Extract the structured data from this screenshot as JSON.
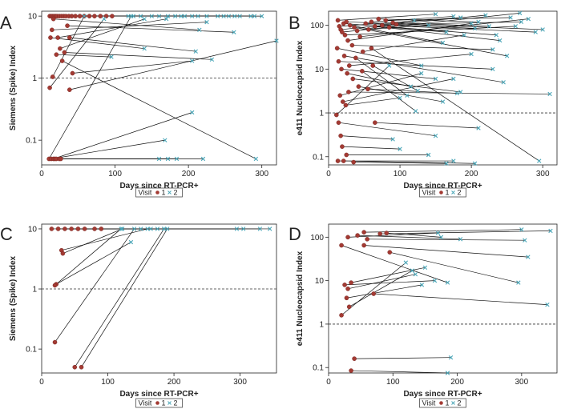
{
  "figure": {
    "legend": {
      "title": "Visit",
      "items": [
        "1",
        "2"
      ]
    },
    "colors": {
      "visit1": "#a33a33",
      "visit2": "#4aa6b8",
      "line": "#111111",
      "reference": "#333333"
    }
  },
  "chart_data": [
    {
      "panel": "A",
      "type": "scatter",
      "xlabel": "Days since RT-PCR+",
      "ylabel": "Siemens (Spike) Index",
      "xlim": [
        0,
        320
      ],
      "ylim": [
        0.04,
        12
      ],
      "yscale": "log",
      "xticks": [
        0,
        100,
        200,
        300
      ],
      "yticks": [
        {
          "v": 0.1,
          "label": "0.1"
        },
        {
          "v": 1,
          "label": "1"
        },
        {
          "v": 10,
          "label": "10"
        }
      ],
      "reference_y": 1,
      "grid": false,
      "pairs": [
        {
          "x1": 11,
          "y1": 10,
          "x2": 150,
          "y2": 10
        },
        {
          "x1": 13,
          "y1": 10,
          "x2": 195,
          "y2": 10
        },
        {
          "x1": 15,
          "y1": 10,
          "x2": 240,
          "y2": 10
        },
        {
          "x1": 17,
          "y1": 10,
          "x2": 263,
          "y2": 10
        },
        {
          "x1": 19,
          "y1": 10,
          "x2": 290,
          "y2": 10
        },
        {
          "x1": 21,
          "y1": 10,
          "x2": 300,
          "y2": 10
        },
        {
          "x1": 24,
          "y1": 10,
          "x2": 118,
          "y2": 10
        },
        {
          "x1": 27,
          "y1": 10,
          "x2": 172,
          "y2": 10
        },
        {
          "x1": 30,
          "y1": 10,
          "x2": 213,
          "y2": 10
        },
        {
          "x1": 33,
          "y1": 10,
          "x2": 255,
          "y2": 10
        },
        {
          "x1": 37,
          "y1": 10,
          "x2": 135,
          "y2": 10
        },
        {
          "x1": 41,
          "y1": 10,
          "x2": 182,
          "y2": 10
        },
        {
          "x1": 46,
          "y1": 10,
          "x2": 225,
          "y2": 10
        },
        {
          "x1": 52,
          "y1": 10,
          "x2": 270,
          "y2": 10
        },
        {
          "x1": 58,
          "y1": 10,
          "x2": 160,
          "y2": 10
        },
        {
          "x1": 65,
          "y1": 10,
          "x2": 205,
          "y2": 10
        },
        {
          "x1": 72,
          "y1": 10,
          "x2": 248,
          "y2": 10
        },
        {
          "x1": 80,
          "y1": 10,
          "x2": 125,
          "y2": 10
        },
        {
          "x1": 88,
          "y1": 10,
          "x2": 190,
          "y2": 10
        },
        {
          "x1": 96,
          "y1": 10,
          "x2": 285,
          "y2": 10
        },
        {
          "x1": 16,
          "y1": 9,
          "x2": 215,
          "y2": 6
        },
        {
          "x1": 35,
          "y1": 7,
          "x2": 262,
          "y2": 5.5
        },
        {
          "x1": 14,
          "y1": 6,
          "x2": 225,
          "y2": 8
        },
        {
          "x1": 22,
          "y1": 4.5,
          "x2": 170,
          "y2": 9
        },
        {
          "x1": 12,
          "y1": 4.5,
          "x2": 140,
          "y2": 3
        },
        {
          "x1": 25,
          "y1": 3,
          "x2": 140,
          "y2": 9
        },
        {
          "x1": 38,
          "y1": 4.5,
          "x2": 210,
          "y2": 2.7
        },
        {
          "x1": 31,
          "y1": 2.6,
          "x2": 232,
          "y2": 2
        },
        {
          "x1": 20,
          "y1": 2.4,
          "x2": 95,
          "y2": 2.2
        },
        {
          "x1": 15,
          "y1": 1.05,
          "x2": 58,
          "y2": 10
        },
        {
          "x1": 42,
          "y1": 1.2,
          "x2": 205,
          "y2": 1.9
        },
        {
          "x1": 11,
          "y1": 0.7,
          "x2": 85,
          "y2": 9
        },
        {
          "x1": 28,
          "y1": 1.9,
          "x2": 292,
          "y2": 0.05
        },
        {
          "x1": 38,
          "y1": 0.65,
          "x2": 320,
          "y2": 4
        },
        {
          "x1": 10,
          "y1": 0.05,
          "x2": 122,
          "y2": 10
        },
        {
          "x1": 13,
          "y1": 0.05,
          "x2": 168,
          "y2": 0.1
        },
        {
          "x1": 16,
          "y1": 0.05,
          "x2": 205,
          "y2": 0.28
        },
        {
          "x1": 18,
          "y1": 0.05,
          "x2": 220,
          "y2": 0.05
        },
        {
          "x1": 20,
          "y1": 0.05,
          "x2": 172,
          "y2": 0.05
        },
        {
          "x1": 24,
          "y1": 0.05,
          "x2": 160,
          "y2": 0.05
        },
        {
          "x1": 26,
          "y1": 0.05,
          "x2": 184,
          "y2": 0.05
        }
      ]
    },
    {
      "panel": "B",
      "type": "scatter",
      "xlabel": "Days since RT-PCR+",
      "ylabel": "e411 Nucleocapsid Index",
      "xlim": [
        0,
        320
      ],
      "ylim": [
        0.065,
        210
      ],
      "yscale": "log",
      "xticks": [
        0,
        100,
        200,
        300
      ],
      "yticks": [
        {
          "v": 0.1,
          "label": "0.1"
        },
        {
          "v": 1,
          "label": "1"
        },
        {
          "v": 10,
          "label": "10"
        },
        {
          "v": 100,
          "label": "100"
        }
      ],
      "reference_y": 1,
      "grid": false,
      "pairs": [
        {
          "x1": 13,
          "y1": 130,
          "x2": 150,
          "y2": 180
        },
        {
          "x1": 15,
          "y1": 95,
          "x2": 185,
          "y2": 150
        },
        {
          "x1": 17,
          "y1": 80,
          "x2": 220,
          "y2": 170
        },
        {
          "x1": 19,
          "y1": 70,
          "x2": 268,
          "y2": 190
        },
        {
          "x1": 21,
          "y1": 110,
          "x2": 235,
          "y2": 60
        },
        {
          "x1": 23,
          "y1": 60,
          "x2": 262,
          "y2": 95
        },
        {
          "x1": 25,
          "y1": 120,
          "x2": 300,
          "y2": 80
        },
        {
          "x1": 27,
          "y1": 45,
          "x2": 200,
          "y2": 110
        },
        {
          "x1": 30,
          "y1": 100,
          "x2": 160,
          "y2": 40
        },
        {
          "x1": 33,
          "y1": 35,
          "x2": 230,
          "y2": 28
        },
        {
          "x1": 36,
          "y1": 90,
          "x2": 250,
          "y2": 20
        },
        {
          "x1": 40,
          "y1": 75,
          "x2": 120,
          "y2": 130
        },
        {
          "x1": 44,
          "y1": 55,
          "x2": 280,
          "y2": 140
        },
        {
          "x1": 48,
          "y1": 25,
          "x2": 190,
          "y2": 60
        },
        {
          "x1": 52,
          "y1": 110,
          "x2": 205,
          "y2": 85
        },
        {
          "x1": 56,
          "y1": 80,
          "x2": 140,
          "y2": 100
        },
        {
          "x1": 60,
          "y1": 120,
          "x2": 175,
          "y2": 160
        },
        {
          "x1": 65,
          "y1": 95,
          "x2": 240,
          "y2": 45
        },
        {
          "x1": 70,
          "y1": 140,
          "x2": 210,
          "y2": 120
        },
        {
          "x1": 75,
          "y1": 100,
          "x2": 290,
          "y2": 70
        },
        {
          "x1": 80,
          "y1": 130,
          "x2": 255,
          "y2": 150
        },
        {
          "x1": 85,
          "y1": 90,
          "x2": 165,
          "y2": 70
        },
        {
          "x1": 90,
          "y1": 115,
          "x2": 225,
          "y2": 95
        },
        {
          "x1": 95,
          "y1": 105,
          "x2": 270,
          "y2": 120
        },
        {
          "x1": 12,
          "y1": 30,
          "x2": 130,
          "y2": 12
        },
        {
          "x1": 14,
          "y1": 15,
          "x2": 230,
          "y2": 10
        },
        {
          "x1": 18,
          "y1": 10,
          "x2": 150,
          "y2": 6
        },
        {
          "x1": 22,
          "y1": 20,
          "x2": 245,
          "y2": 5
        },
        {
          "x1": 26,
          "y1": 8,
          "x2": 115,
          "y2": 4
        },
        {
          "x1": 29,
          "y1": 12,
          "x2": 200,
          "y2": 22
        },
        {
          "x1": 34,
          "y1": 6,
          "x2": 185,
          "y2": 3
        },
        {
          "x1": 38,
          "y1": 18,
          "x2": 110,
          "y2": 2.5
        },
        {
          "x1": 42,
          "y1": 4,
          "x2": 160,
          "y2": 1.8
        },
        {
          "x1": 47,
          "y1": 9,
          "x2": 122,
          "y2": 1.1
        },
        {
          "x1": 55,
          "y1": 3.5,
          "x2": 180,
          "y2": 2.8
        },
        {
          "x1": 62,
          "y1": 12,
          "x2": 125,
          "y2": 3.2
        },
        {
          "x1": 16,
          "y1": 2.5,
          "x2": 130,
          "y2": 8
        },
        {
          "x1": 20,
          "y1": 1.8,
          "x2": 175,
          "y2": 6
        },
        {
          "x1": 24,
          "y1": 1.5,
          "x2": 100,
          "y2": 2.2
        },
        {
          "x1": 11,
          "y1": 0.9,
          "x2": 85,
          "y2": 12
        },
        {
          "x1": 28,
          "y1": 3,
          "x2": 310,
          "y2": 2.7
        },
        {
          "x1": 60,
          "y1": 30,
          "x2": 295,
          "y2": 0.08
        },
        {
          "x1": 14,
          "y1": 0.6,
          "x2": 150,
          "y2": 0.3
        },
        {
          "x1": 65,
          "y1": 0.6,
          "x2": 210,
          "y2": 0.45
        },
        {
          "x1": 17,
          "y1": 0.3,
          "x2": 90,
          "y2": 0.25
        },
        {
          "x1": 19,
          "y1": 0.17,
          "x2": 100,
          "y2": 0.15
        },
        {
          "x1": 25,
          "y1": 0.11,
          "x2": 140,
          "y2": 0.11
        },
        {
          "x1": 13,
          "y1": 0.08,
          "x2": 175,
          "y2": 0.08
        },
        {
          "x1": 21,
          "y1": 0.08,
          "x2": 205,
          "y2": 0.07
        },
        {
          "x1": 35,
          "y1": 0.075,
          "x2": 165,
          "y2": 0.07
        }
      ]
    },
    {
      "panel": "C",
      "type": "scatter",
      "xlabel": "Days since RT-PCR+",
      "ylabel": "Siemens (Spike) Index",
      "xlim": [
        0,
        355
      ],
      "ylim": [
        0.04,
        12
      ],
      "yscale": "log",
      "xticks": [
        0,
        100,
        200,
        300
      ],
      "yticks": [
        {
          "v": 0.1,
          "label": "0.1"
        },
        {
          "v": 1,
          "label": "1"
        },
        {
          "v": 10,
          "label": "10"
        }
      ],
      "reference_y": 1,
      "grid": false,
      "pairs": [
        {
          "x1": 15,
          "y1": 10,
          "x2": 150,
          "y2": 10
        },
        {
          "x1": 25,
          "y1": 10,
          "x2": 165,
          "y2": 10
        },
        {
          "x1": 35,
          "y1": 10,
          "x2": 185,
          "y2": 10
        },
        {
          "x1": 45,
          "y1": 10,
          "x2": 295,
          "y2": 10
        },
        {
          "x1": 55,
          "y1": 10,
          "x2": 305,
          "y2": 10
        },
        {
          "x1": 65,
          "y1": 10,
          "x2": 330,
          "y2": 10
        },
        {
          "x1": 80,
          "y1": 10,
          "x2": 345,
          "y2": 10
        },
        {
          "x1": 90,
          "y1": 10,
          "x2": 175,
          "y2": 10
        },
        {
          "x1": 30,
          "y1": 4.4,
          "x2": 160,
          "y2": 10
        },
        {
          "x1": 32,
          "y1": 3.9,
          "x2": 122,
          "y2": 10
        },
        {
          "x1": 22,
          "y1": 1.2,
          "x2": 135,
          "y2": 6
        },
        {
          "x1": 20,
          "y1": 1.15,
          "x2": 120,
          "y2": 10
        },
        {
          "x1": 20,
          "y1": 0.13,
          "x2": 140,
          "y2": 10
        },
        {
          "x1": 50,
          "y1": 0.05,
          "x2": 185,
          "y2": 10
        },
        {
          "x1": 60,
          "y1": 0.05,
          "x2": 190,
          "y2": 10
        }
      ]
    },
    {
      "panel": "D",
      "type": "scatter",
      "xlabel": "Days since RT-PCR+",
      "ylabel": "e411 Nucleocapsid Index",
      "xlim": [
        0,
        355
      ],
      "ylim": [
        0.075,
        200
      ],
      "yscale": "log",
      "xticks": [
        0,
        100,
        200,
        300
      ],
      "yticks": [
        {
          "v": 0.1,
          "label": "0.1"
        },
        {
          "v": 1,
          "label": "1"
        },
        {
          "v": 10,
          "label": "10"
        },
        {
          "v": 100,
          "label": "100"
        }
      ],
      "reference_y": 1,
      "grid": false,
      "pairs": [
        {
          "x1": 30,
          "y1": 100,
          "x2": 170,
          "y2": 125
        },
        {
          "x1": 55,
          "y1": 130,
          "x2": 300,
          "y2": 150
        },
        {
          "x1": 60,
          "y1": 90,
          "x2": 305,
          "y2": 85
        },
        {
          "x1": 80,
          "y1": 120,
          "x2": 345,
          "y2": 140
        },
        {
          "x1": 90,
          "y1": 125,
          "x2": 175,
          "y2": 100
        },
        {
          "x1": 45,
          "y1": 110,
          "x2": 205,
          "y2": 90
        },
        {
          "x1": 55,
          "y1": 65,
          "x2": 310,
          "y2": 35
        },
        {
          "x1": 95,
          "y1": 45,
          "x2": 295,
          "y2": 9
        },
        {
          "x1": 20,
          "y1": 65,
          "x2": 185,
          "y2": 9
        },
        {
          "x1": 35,
          "y1": 9,
          "x2": 150,
          "y2": 20
        },
        {
          "x1": 30,
          "y1": 6.5,
          "x2": 135,
          "y2": 14
        },
        {
          "x1": 25,
          "y1": 8,
          "x2": 165,
          "y2": 10
        },
        {
          "x1": 28,
          "y1": 4,
          "x2": 145,
          "y2": 8
        },
        {
          "x1": 32,
          "y1": 2.5,
          "x2": 130,
          "y2": 17
        },
        {
          "x1": 20,
          "y1": 1.6,
          "x2": 120,
          "y2": 26
        },
        {
          "x1": 70,
          "y1": 5,
          "x2": 340,
          "y2": 2.8
        },
        {
          "x1": 40,
          "y1": 0.16,
          "x2": 190,
          "y2": 0.17
        },
        {
          "x1": 35,
          "y1": 0.085,
          "x2": 185,
          "y2": 0.075
        }
      ]
    }
  ]
}
